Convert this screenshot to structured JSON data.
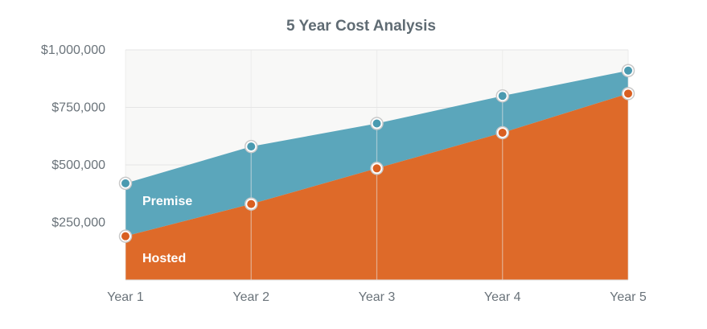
{
  "chart_data": {
    "type": "area",
    "title": "5 Year Cost Analysis",
    "categories": [
      "Year 1",
      "Year 2",
      "Year 3",
      "Year 4",
      "Year 5"
    ],
    "y_ticks": [
      "$250,000",
      "$500,000",
      "$750,000",
      "$1,000,000"
    ],
    "y_tick_values": [
      250000,
      500000,
      750000,
      1000000
    ],
    "ylim": [
      0,
      1000000
    ],
    "grid": true,
    "series": [
      {
        "name": "Premise",
        "values": [
          420000,
          580000,
          680000,
          800000,
          910000
        ],
        "fill": "#5ba6bb",
        "marker": "#4a9ab0"
      },
      {
        "name": "Hosted",
        "values": [
          190000,
          330000,
          485000,
          640000,
          810000
        ],
        "fill": "#de6a29",
        "marker": "#d95f21"
      }
    ],
    "colors": {
      "plot_background": "#f8f8f7",
      "grid": "#e5e5e5",
      "text": "#6a737a",
      "title": "#5f6b73"
    }
  }
}
